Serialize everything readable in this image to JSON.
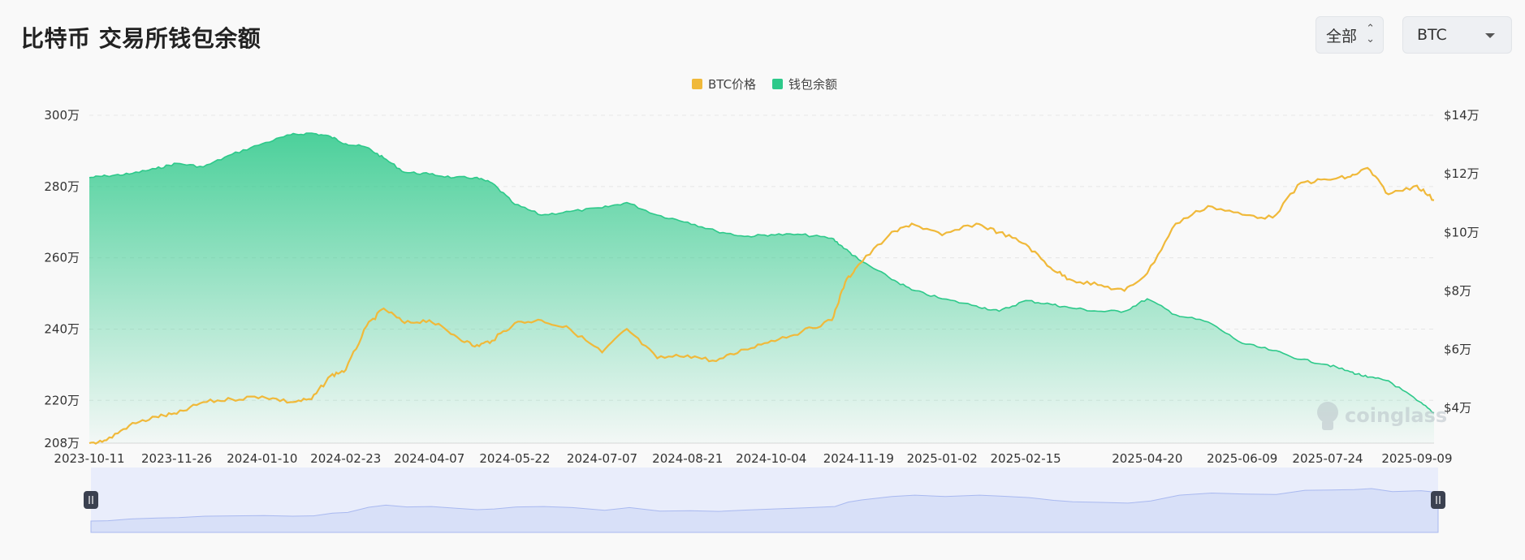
{
  "header": {
    "title": "比特币 交易所钱包余额",
    "range_label": "全部",
    "coin_label": "BTC"
  },
  "colors": {
    "price": "#f0b93a",
    "balance": "#2dc98a",
    "navigator": "#d8e0f8",
    "navigator_line": "#a9b9f0"
  },
  "watermark": "coinglass",
  "chart_data": {
    "type": "line",
    "title": "比特币 交易所钱包余额",
    "legend": [
      "BTC价格",
      "钱包余额"
    ],
    "legend_position": "top-center",
    "x_tick_labels": [
      "2023-10-11",
      "2023-11-26",
      "2024-01-10",
      "2024-02-23",
      "2024-04-07",
      "2024-05-22",
      "2024-07-07",
      "2024-08-21",
      "2024-10-04",
      "2024-11-19",
      "2025-01-02",
      "2025-02-15",
      "2025-04-20",
      "2025-06-09",
      "2025-07-24",
      "2025-09-09"
    ],
    "y_left_ticks": [
      "300万",
      "280万",
      "260万",
      "240万",
      "220万",
      "208万"
    ],
    "y_right_ticks": [
      "$14万",
      "$12万",
      "$10万",
      "$8万",
      "$6万",
      "$4万"
    ],
    "y_left_range": [
      208,
      300
    ],
    "y_right_range": [
      2.8,
      14
    ],
    "grid": true,
    "x": [
      "2023-10-11",
      "2023-10-20",
      "2023-11-01",
      "2023-11-15",
      "2023-11-26",
      "2023-12-10",
      "2023-12-25",
      "2024-01-10",
      "2024-01-25",
      "2024-02-05",
      "2024-02-15",
      "2024-02-23",
      "2024-03-05",
      "2024-03-14",
      "2024-03-25",
      "2024-04-07",
      "2024-04-20",
      "2024-05-01",
      "2024-05-10",
      "2024-05-22",
      "2024-06-05",
      "2024-06-20",
      "2024-07-07",
      "2024-07-20",
      "2024-08-05",
      "2024-08-21",
      "2024-09-05",
      "2024-09-20",
      "2024-10-04",
      "2024-10-20",
      "2024-11-05",
      "2024-11-12",
      "2024-11-19",
      "2024-12-05",
      "2024-12-17",
      "2025-01-02",
      "2025-01-20",
      "2025-02-01",
      "2025-02-15",
      "2025-02-28",
      "2025-03-10",
      "2025-03-25",
      "2025-04-08",
      "2025-04-20",
      "2025-05-05",
      "2025-05-22",
      "2025-06-09",
      "2025-06-25",
      "2025-07-10",
      "2025-07-24",
      "2025-08-05",
      "2025-08-14",
      "2025-08-25",
      "2025-09-09",
      "2025-09-18"
    ],
    "series": [
      {
        "name": "BTC价格",
        "axis": "right",
        "values": [
          2.8,
          2.9,
          3.4,
          3.7,
          3.8,
          4.2,
          4.3,
          4.4,
          4.2,
          4.3,
          5.1,
          5.3,
          6.8,
          7.4,
          6.9,
          7.0,
          6.5,
          6.1,
          6.3,
          6.9,
          7.0,
          6.7,
          5.9,
          6.7,
          5.7,
          5.8,
          5.6,
          6.0,
          6.3,
          6.6,
          7.0,
          8.3,
          8.9,
          9.9,
          10.3,
          9.9,
          10.3,
          10.0,
          9.6,
          8.8,
          8.4,
          8.2,
          8.0,
          8.6,
          10.3,
          10.9,
          10.6,
          10.5,
          11.7,
          11.8,
          11.9,
          12.2,
          11.3,
          11.6,
          11.1
        ]
      },
      {
        "name": "钱包余额",
        "axis": "left",
        "values": [
          282.5,
          283,
          283.5,
          285,
          286.5,
          285.5,
          289,
          292,
          294.5,
          295,
          294,
          292,
          291,
          288,
          284,
          283.5,
          282.5,
          282.5,
          281,
          275,
          272,
          273,
          274,
          275.5,
          272,
          270,
          267.5,
          266,
          266.5,
          266.5,
          265.5,
          262.5,
          259.5,
          254.5,
          251,
          248.5,
          246.5,
          245,
          248,
          247,
          246,
          245,
          245,
          248.5,
          244,
          242,
          236,
          234,
          231.5,
          230,
          228,
          226.5,
          225.5,
          220,
          216.5
        ]
      }
    ],
    "x_range": [
      "2023-10-11",
      "2025-09-18"
    ]
  }
}
